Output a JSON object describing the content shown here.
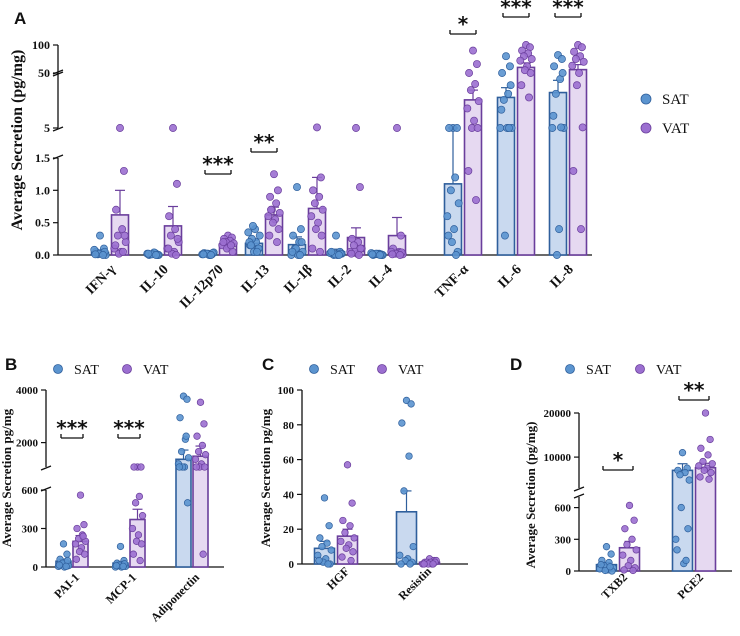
{
  "colors": {
    "sat_bar": "#c9d9ef",
    "sat_edge": "#2f5f9c",
    "sat_dot": "#5b94cf",
    "vat_bar": "#e6d9f1",
    "vat_edge": "#6a3e9c",
    "vat_dot": "#9b6fd0"
  },
  "chart_data": [
    {
      "panel": "A",
      "type": "bar",
      "ylabel": "Average Secretion (pg/mg)",
      "axis_breaks": [
        [
          1.5,
          5
        ],
        [
          5,
          50
        ]
      ],
      "yticks": [
        "0.0",
        "0.5",
        "1.0",
        "1.5",
        "5",
        "50",
        "100"
      ],
      "categories": [
        "IFN-γ",
        "IL-10",
        "IL-12p70",
        "IL-13",
        "IL-1β",
        "IL-2",
        "IL-4",
        "TNF-α",
        "IL-6",
        "IL-8"
      ],
      "series": [
        {
          "name": "SAT",
          "values": [
            0.04,
            0.02,
            0.02,
            0.18,
            0.16,
            0.05,
            0.02,
            1.1,
            30,
            34
          ],
          "errors": [
            0.03,
            0.02,
            0.01,
            0.05,
            0.12,
            0.04,
            0.01,
            0.5,
            8,
            10
          ],
          "points": [
            [
              0.3,
              0.1,
              0.05,
              0.02,
              0.01,
              0,
              0.08,
              0.03,
              0.02,
              0.05,
              0.01,
              0
            ],
            [
              0.02,
              0.01,
              0,
              0.03,
              0.01,
              0,
              0.02,
              0.04,
              0.01,
              0,
              0.02,
              0
            ],
            [
              0.02,
              0.01,
              0.03,
              0,
              0.02,
              0.04,
              0.01,
              0,
              0.02,
              0.03,
              0.01,
              0
            ],
            [
              0.05,
              0.1,
              0.15,
              0.2,
              0.25,
              0.3,
              0.35,
              0.4,
              0.45,
              0.1,
              0.2,
              0.05,
              0.15
            ],
            [
              1.05,
              0.4,
              0.3,
              0.2,
              0.1,
              0.05,
              0,
              0,
              0.1,
              0.2,
              0.05,
              0
            ],
            [
              0.3,
              0.05,
              0.02,
              0.01,
              0,
              0.02,
              0.03,
              0,
              0.01,
              0.02,
              0.05,
              0
            ],
            [
              0.02,
              0.01,
              0,
              0.02,
              0.01,
              0,
              0.03,
              0.01,
              0.02,
              0,
              0.01,
              0
            ],
            [
              5,
              4,
              2.9,
              1.2,
              1.0,
              0.8,
              0.6,
              0.4,
              0.2,
              0.05,
              0.3,
              0
            ],
            [
              80,
              62,
              50,
              33,
              28,
              4.5,
              3,
              1.8,
              0.3,
              40,
              20,
              5
            ],
            [
              82,
              75,
              62,
              45,
              33,
              4.2,
              2.5,
              0.4,
              0,
              50,
              15,
              5.5
            ]
          ]
        },
        {
          "name": "VAT",
          "values": [
            0.62,
            0.45,
            0.17,
            0.62,
            0.72,
            0.27,
            0.3,
            28,
            60,
            56
          ],
          "errors": [
            0.38,
            0.3,
            0.04,
            0.12,
            0.48,
            0.15,
            0.28,
            8,
            8,
            9
          ],
          "points": [
            [
              4.5,
              1.3,
              0.7,
              0.4,
              0.3,
              0.2,
              0.1,
              0.05,
              0.02,
              0.3,
              0.15,
              0.05
            ],
            [
              3.9,
              1.1,
              0.6,
              0.4,
              0.3,
              0.2,
              0.1,
              0.05,
              0.02,
              0.25,
              0.1,
              0
            ],
            [
              0.3,
              0.27,
              0.25,
              0.22,
              0.2,
              0.18,
              0.15,
              0.12,
              0.1,
              0.05,
              0.2,
              0.15
            ],
            [
              1.25,
              1.0,
              0.9,
              0.8,
              0.7,
              0.65,
              0.6,
              0.55,
              0.5,
              0.4,
              0.3,
              0.2,
              0.7
            ],
            [
              5.5,
              1.2,
              1.0,
              0.9,
              0.8,
              0.7,
              0.6,
              0.5,
              0.4,
              0.3,
              0.1,
              0.05
            ],
            [
              1.6,
              1.05,
              0.25,
              0.2,
              0.15,
              0.1,
              0.05,
              0.02,
              0.05,
              0.1,
              0.02,
              0
            ],
            [
              3.6,
              0.3,
              0.1,
              0.05,
              0.02,
              0.01,
              0.05,
              0.03,
              0.02,
              0.04,
              0.01,
              0
            ],
            [
              90,
              66,
              50,
              41,
              36,
              27,
              21,
              11,
              5,
              3.3,
              1.3,
              0.85
            ],
            [
              100,
              96,
              90,
              85,
              80,
              75,
              72,
              62,
              55,
              50,
              40,
              30
            ],
            [
              100,
              96,
              88,
              80,
              75,
              70,
              63,
              50,
              40,
              5.5,
              1.3,
              0.4
            ]
          ]
        }
      ],
      "significance": [
        {
          "category": "IL-12p70",
          "label": "***"
        },
        {
          "category": "IL-13",
          "label": "**"
        },
        {
          "category": "TNF-α",
          "label": "*"
        },
        {
          "category": "IL-6",
          "label": "***"
        },
        {
          "category": "IL-8",
          "label": "***"
        }
      ],
      "legend": [
        "SAT",
        "VAT"
      ]
    },
    {
      "panel": "B",
      "type": "bar",
      "ylabel": "Average Secretion pg/mg",
      "axis_breaks": [
        [
          600,
          1500
        ]
      ],
      "yticks": [
        "0",
        "300",
        "600",
        "2000",
        "4000"
      ],
      "categories": [
        "PAI-1",
        "MCP-1",
        "Adiponectin"
      ],
      "series": [
        {
          "name": "SAT",
          "values": [
            45,
            30,
            1750
          ],
          "errors": [
            15,
            10,
            300
          ],
          "points": [
            [
              180,
              100,
              60,
              40,
              20,
              10,
              5,
              0,
              30,
              50,
              15,
              5
            ],
            [
              160,
              50,
              30,
              20,
              10,
              5,
              0,
              0,
              15,
              25,
              10,
              5
            ],
            [
              3800,
              3700,
              3100,
              2400,
              2000,
              1800,
              1600,
              1400,
              900,
              500,
              1500,
              2500
            ]
          ]
        },
        {
          "name": "VAT",
          "values": [
            200,
            370,
            1850
          ],
          "errors": [
            45,
            80,
            330
          ],
          "points": [
            [
              560,
              330,
              300,
              250,
              220,
              200,
              180,
              150,
              120,
              100,
              60,
              240
            ],
            [
              1450,
              1000,
              800,
              550,
              500,
              400,
              300,
              250,
              200,
              180,
              100,
              50
            ],
            [
              3600,
              2900,
              2500,
              2200,
              2000,
              1900,
              1750,
              1600,
              1400,
              1000,
              700,
              100
            ]
          ]
        }
      ],
      "significance": [
        {
          "category": "PAI-1",
          "label": "***"
        },
        {
          "category": "MCP-1",
          "label": "***"
        }
      ],
      "legend": [
        "SAT",
        "VAT"
      ]
    },
    {
      "panel": "C",
      "type": "bar",
      "ylabel": "Average Secretion pg/mg",
      "ylim": [
        0,
        100
      ],
      "yticks": [
        "0",
        "20",
        "40",
        "60",
        "80",
        "100"
      ],
      "categories": [
        "HGF",
        "Resistin"
      ],
      "series": [
        {
          "name": "SAT",
          "values": [
            9,
            30
          ],
          "errors": [
            4,
            12
          ],
          "points": [
            [
              38,
              22,
              15,
              12,
              10,
              8,
              5,
              3,
              1,
              0,
              2,
              0
            ],
            [
              94,
              92,
              81,
              62,
              42,
              10,
              5,
              3,
              2,
              1,
              0,
              0
            ]
          ]
        },
        {
          "name": "VAT",
          "values": [
            16,
            1
          ],
          "errors": [
            4,
            0.5
          ],
          "points": [
            [
              57,
              35,
              25,
              22,
              18,
              15,
              13,
              11,
              9,
              7,
              4,
              2
            ],
            [
              3,
              2,
              1,
              0,
              1,
              2,
              0,
              1,
              0,
              1,
              0,
              0
            ]
          ]
        }
      ],
      "legend": [
        "SAT",
        "VAT"
      ]
    },
    {
      "panel": "D",
      "type": "bar",
      "ylabel": "Average Secretion (pg/mg)",
      "axis_breaks": [
        [
          700,
          3000
        ]
      ],
      "yticks": [
        "0",
        "300",
        "600",
        "10000",
        "20000"
      ],
      "categories": [
        "TXB2",
        "PGE2"
      ],
      "series": [
        {
          "name": "SAT",
          "values": [
            60,
            7000
          ],
          "errors": [
            20,
            1500
          ],
          "points": [
            [
              230,
              160,
              100,
              80,
              50,
              30,
              20,
              10,
              5,
              0,
              60,
              40
            ],
            [
              11000,
              7500,
              7000,
              6500,
              6000,
              4800,
              300,
              70,
              600,
              400,
              200,
              100
            ]
          ]
        },
        {
          "name": "VAT",
          "values": [
            220,
            7600
          ],
          "errors": [
            60,
            1000
          ],
          "points": [
            [
              620,
              480,
              400,
              300,
              250,
              200,
              150,
              100,
              50,
              30,
              10,
              5
            ],
            [
              20000,
              14000,
              12000,
              10500,
              9000,
              8500,
              8000,
              7500,
              7000,
              6500,
              5500,
              5000
            ]
          ]
        }
      ],
      "significance": [
        {
          "category": "TXB2",
          "label": "*"
        },
        {
          "category": "PGE2",
          "label": "**"
        }
      ],
      "legend": [
        "SAT",
        "VAT"
      ]
    }
  ]
}
